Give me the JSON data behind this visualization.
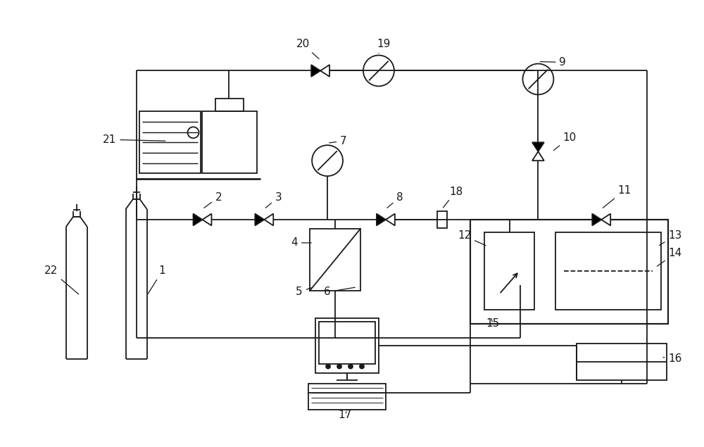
{
  "fig_width": 10.0,
  "fig_height": 6.35,
  "dpi": 100,
  "bg_color": "#ffffff",
  "line_color": "#1a1a1a",
  "lw": 1.3,
  "label_fontsize": 11
}
